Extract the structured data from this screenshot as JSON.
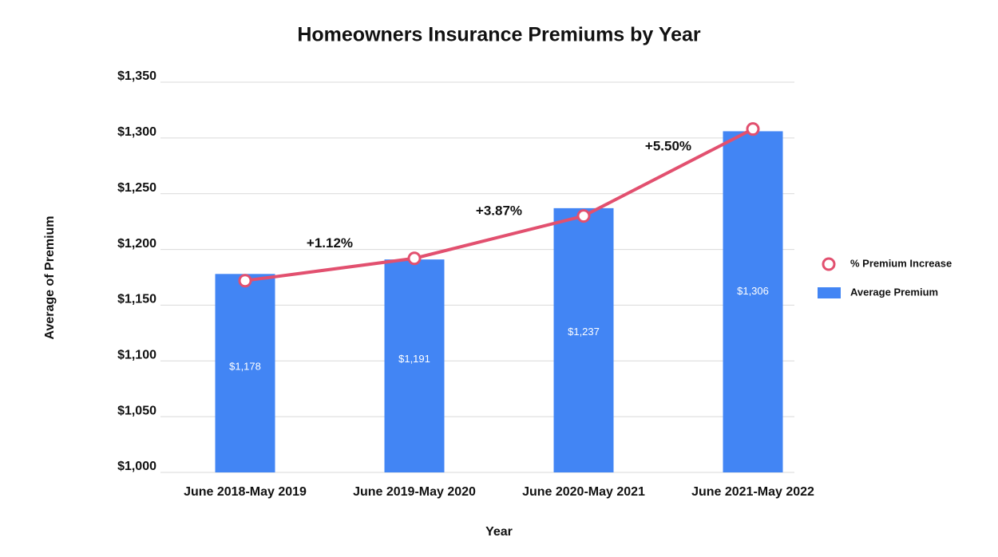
{
  "chart_data": {
    "type": "bar",
    "title": "Homeowners Insurance Premiums by Year",
    "x_label": "Year",
    "y_label": "Average of Premium",
    "categories": [
      "June 2018-May 2019",
      "June 2019-May 2020",
      "June 2020-May 2021",
      "June 2021-May 2022"
    ],
    "series": [
      {
        "name": "Average Premium",
        "type": "bar",
        "color": "#4285f4",
        "values": [
          1178,
          1191,
          1237,
          1306
        ],
        "value_labels": [
          "$1,178",
          "$1,191",
          "$1,237",
          "$1,306"
        ]
      },
      {
        "name": "% Premium Increase",
        "type": "line",
        "color": "#e2506f",
        "values": [
          1172,
          1192,
          1230,
          1308
        ]
      }
    ],
    "annotations": [
      "+1.12%",
      "+3.87%",
      "+5.50%"
    ],
    "ylim": [
      1000,
      1350
    ],
    "yticks": [
      {
        "value": 1000,
        "label": "$1,000"
      },
      {
        "value": 1050,
        "label": "$1,050"
      },
      {
        "value": 1100,
        "label": "$1,100"
      },
      {
        "value": 1150,
        "label": "$1,150"
      },
      {
        "value": 1200,
        "label": "$1,200"
      },
      {
        "value": 1250,
        "label": "$1,250"
      },
      {
        "value": 1300,
        "label": "$1,300"
      },
      {
        "value": 1350,
        "label": "$1,350"
      }
    ],
    "grid": true,
    "legend": "right"
  }
}
